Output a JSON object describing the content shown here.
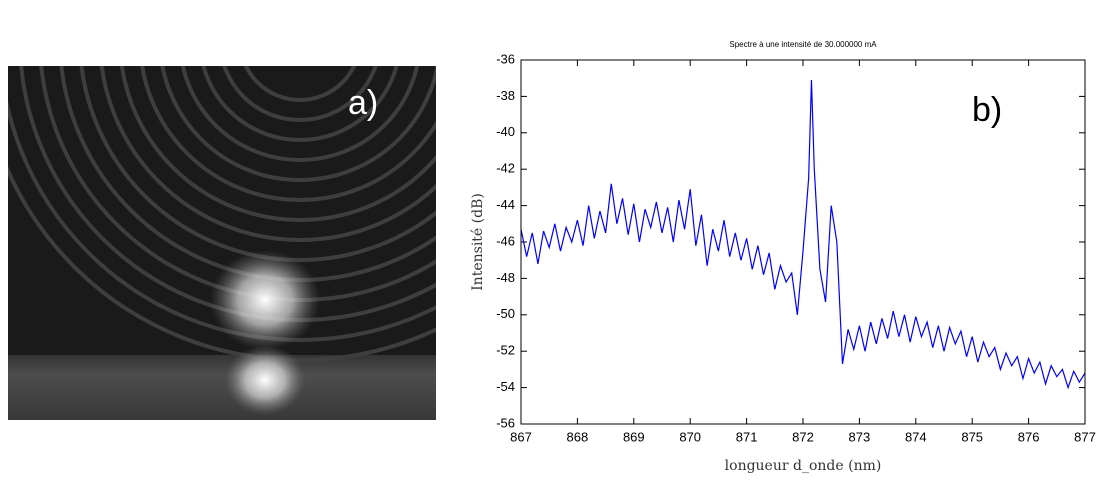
{
  "photo": {
    "label": "a)"
  },
  "chart_data": {
    "type": "line",
    "title": "Spectre à une intensité de 30.000000 mA",
    "x_label": "longueur d_onde (nm)",
    "y_label": "Intensité (dB)",
    "annotations": [
      "b)"
    ],
    "color": "#0000ff",
    "xlim": [
      867,
      877
    ],
    "ylim": [
      -56,
      -36
    ],
    "xticks": [
      867,
      868,
      869,
      870,
      871,
      872,
      873,
      874,
      875,
      876,
      877
    ],
    "yticks": [
      -36,
      -38,
      -40,
      -42,
      -44,
      -46,
      -48,
      -50,
      -52,
      -54,
      -56
    ],
    "x": [
      867.0,
      867.1,
      867.2,
      867.3,
      867.4,
      867.5,
      867.6,
      867.7,
      867.8,
      867.9,
      868.0,
      868.1,
      868.2,
      868.3,
      868.4,
      868.5,
      868.6,
      868.7,
      868.8,
      868.9,
      869.0,
      869.1,
      869.2,
      869.3,
      869.4,
      869.5,
      869.6,
      869.7,
      869.8,
      869.9,
      870.0,
      870.1,
      870.2,
      870.3,
      870.4,
      870.5,
      870.6,
      870.7,
      870.8,
      870.9,
      871.0,
      871.1,
      871.2,
      871.3,
      871.4,
      871.5,
      871.6,
      871.7,
      871.8,
      871.9,
      872.0,
      872.1,
      872.15,
      872.2,
      872.3,
      872.4,
      872.5,
      872.6,
      872.7,
      872.8,
      872.9,
      873.0,
      873.1,
      873.2,
      873.3,
      873.4,
      873.5,
      873.6,
      873.7,
      873.8,
      873.9,
      874.0,
      874.1,
      874.2,
      874.3,
      874.4,
      874.5,
      874.6,
      874.7,
      874.8,
      874.9,
      875.0,
      875.1,
      875.2,
      875.3,
      875.4,
      875.5,
      875.6,
      875.7,
      875.8,
      875.9,
      876.0,
      876.1,
      876.2,
      876.3,
      876.4,
      876.5,
      876.6,
      876.7,
      876.8,
      876.9,
      877.0
    ],
    "values": [
      -45.3,
      -46.8,
      -45.5,
      -47.2,
      -45.4,
      -46.3,
      -45.0,
      -46.5,
      -45.2,
      -46.0,
      -44.8,
      -46.2,
      -44.0,
      -45.8,
      -44.3,
      -45.5,
      -42.8,
      -45.0,
      -43.6,
      -45.6,
      -43.9,
      -46.0,
      -44.2,
      -45.2,
      -43.8,
      -45.5,
      -44.1,
      -46.0,
      -43.7,
      -45.3,
      -43.1,
      -46.2,
      -44.5,
      -47.3,
      -45.3,
      -46.5,
      -44.8,
      -46.8,
      -45.5,
      -47.0,
      -45.8,
      -47.5,
      -46.2,
      -47.8,
      -46.6,
      -48.6,
      -47.3,
      -48.2,
      -47.7,
      -50.0,
      -46.5,
      -42.5,
      -37.1,
      -42.0,
      -47.5,
      -49.3,
      -44.0,
      -46.0,
      -52.7,
      -50.8,
      -51.9,
      -50.6,
      -52.0,
      -50.4,
      -51.6,
      -50.2,
      -51.3,
      -49.8,
      -51.2,
      -50.0,
      -51.5,
      -50.1,
      -51.2,
      -50.4,
      -51.8,
      -50.6,
      -52.0,
      -50.7,
      -51.6,
      -50.9,
      -52.3,
      -51.2,
      -52.6,
      -51.5,
      -52.3,
      -51.8,
      -53.0,
      -52.1,
      -52.8,
      -52.3,
      -53.5,
      -52.4,
      -53.2,
      -52.6,
      -53.8,
      -52.8,
      -53.4,
      -53.0,
      -54.0,
      -53.1,
      -53.7,
      -53.2
    ]
  }
}
